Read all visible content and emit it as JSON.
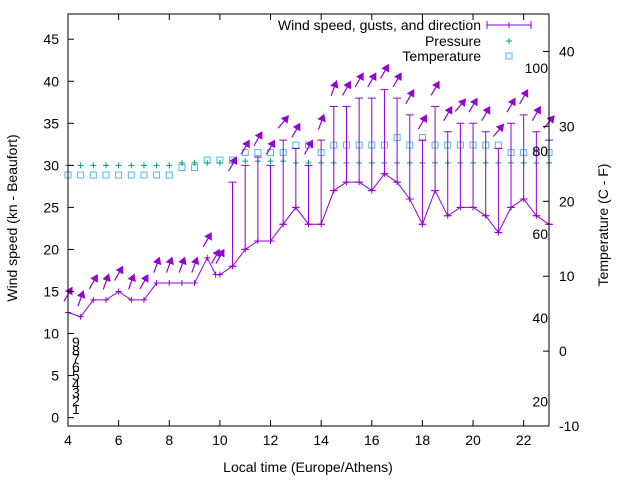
{
  "chart_data": {
    "type": "line",
    "xlabel": "Local time (Europe/Athens)",
    "ylabel": "Wind speed (kn - Beaufort)",
    "y2label": "Temperature (C - F)",
    "xlim": [
      4,
      23
    ],
    "ylim": [
      -1,
      48
    ],
    "y2lim": [
      -10,
      45
    ],
    "grid": false,
    "legend_position": "top-right",
    "xticks": [
      4,
      6,
      8,
      10,
      12,
      14,
      16,
      18,
      20,
      22
    ],
    "yticks": [
      0,
      5,
      10,
      15,
      20,
      25,
      30,
      35,
      40,
      45
    ],
    "y2ticks": [
      -10,
      0,
      10,
      20,
      30,
      40
    ],
    "beaufort_labels": [
      {
        "y": 1,
        "label": "1"
      },
      {
        "y": 2,
        "label": "2"
      },
      {
        "y": 3,
        "label": "3"
      },
      {
        "y": 4,
        "label": "4"
      },
      {
        "y": 5,
        "label": "5"
      },
      {
        "y": 6,
        "label": "6"
      },
      {
        "y": 7,
        "label": "7"
      },
      {
        "y": 8,
        "label": "8"
      },
      {
        "y": 9,
        "label": "9"
      }
    ],
    "fahrenheit_labels": [
      {
        "y2": -6.7,
        "label": "20"
      },
      {
        "y2": 4.4,
        "label": "40"
      },
      {
        "y2": 15.6,
        "label": "60"
      },
      {
        "y2": 26.7,
        "label": "80"
      },
      {
        "y2": 37.8,
        "label": "100"
      }
    ],
    "series": [
      {
        "name": "Wind speed, gusts, and direction",
        "color": "#9400d3",
        "x": [
          4.0,
          4.5,
          5.0,
          5.5,
          6.0,
          6.5,
          7.0,
          7.5,
          8.0,
          8.5,
          9.0,
          9.5,
          9.83,
          10.0,
          10.5,
          11.0,
          11.5,
          12.0,
          12.5,
          13.0,
          13.5,
          14.0,
          14.5,
          15.0,
          15.5,
          16.0,
          16.5,
          17.0,
          17.5,
          18.0,
          18.5,
          19.0,
          19.5,
          20.0,
          20.5,
          21.0,
          21.5,
          22.0,
          22.5,
          23.0
        ],
        "speed": [
          12.5,
          12.0,
          14.0,
          14.0,
          15.0,
          14.0,
          14.0,
          16.0,
          16.0,
          16.0,
          16.0,
          19.0,
          17.0,
          17.0,
          18.0,
          20.0,
          21.0,
          21.0,
          23.0,
          25.0,
          23.0,
          23.0,
          27.0,
          28.0,
          28.0,
          27.0,
          29.0,
          28.0,
          26.0,
          23.0,
          27.0,
          24.0,
          25.0,
          25.0,
          24.0,
          22.0,
          25.0,
          26.0,
          24.0,
          23.0
        ],
        "gust": [
          12.5,
          12.0,
          14.0,
          14.0,
          15.0,
          14.0,
          14.0,
          16.0,
          16.0,
          16.0,
          16.0,
          19.0,
          17.0,
          17.0,
          28.0,
          30.0,
          31.0,
          30.0,
          33.0,
          32.0,
          30.0,
          33.0,
          37.0,
          37.0,
          38.0,
          38.0,
          39.0,
          38.0,
          36.0,
          33.0,
          37.0,
          34.0,
          35.0,
          35.0,
          34.0,
          32.0,
          35.0,
          36.0,
          34.0,
          33.0
        ],
        "direction_deg": [
          330,
          340,
          330,
          340,
          330,
          340,
          330,
          340,
          340,
          340,
          340,
          330,
          330,
          330,
          330,
          330,
          330,
          330,
          320,
          330,
          330,
          340,
          340,
          330,
          330,
          330,
          330,
          330,
          330,
          330,
          330,
          330,
          320,
          330,
          330,
          320,
          330,
          330,
          330,
          320
        ]
      },
      {
        "name": "Pressure",
        "color": "#009e73",
        "x": [
          4.0,
          4.5,
          5.0,
          5.5,
          6.0,
          6.5,
          7.0,
          7.5,
          8.0,
          8.5,
          9.0,
          9.5,
          10.0,
          10.5,
          11.0,
          11.5,
          12.0,
          12.5,
          13.0,
          13.5,
          14.0,
          14.5,
          15.0,
          15.5,
          16.0,
          16.5,
          17.0,
          17.5,
          18.0,
          18.5,
          19.0,
          19.5,
          20.0,
          20.5,
          21.0,
          21.5,
          22.0,
          22.5,
          23.0
        ],
        "y": [
          30.0,
          30.0,
          30.0,
          30.0,
          30.0,
          30.0,
          30.0,
          30.0,
          30.0,
          30.3,
          30.3,
          30.3,
          30.3,
          30.3,
          30.5,
          30.5,
          30.5,
          30.5,
          30.3,
          30.3,
          30.3,
          30.3,
          30.3,
          30.3,
          30.3,
          30.3,
          30.3,
          30.3,
          30.3,
          30.3,
          30.3,
          30.3,
          30.3,
          30.3,
          30.3,
          30.3,
          30.3,
          30.3,
          30.3
        ]
      },
      {
        "name": "Temperature",
        "color": "#56b4e9",
        "axis": "y2",
        "x": [
          4.0,
          4.5,
          5.0,
          5.5,
          6.0,
          6.5,
          7.0,
          7.5,
          8.0,
          8.5,
          9.0,
          9.5,
          10.0,
          10.5,
          11.0,
          11.5,
          12.0,
          12.5,
          13.0,
          13.5,
          14.0,
          14.5,
          15.0,
          15.5,
          16.0,
          16.5,
          17.0,
          17.5,
          18.0,
          18.5,
          19.0,
          19.5,
          20.0,
          20.5,
          21.0,
          21.5,
          22.0,
          22.5,
          23.0
        ],
        "y": [
          23.5,
          23.5,
          23.5,
          23.5,
          23.5,
          23.5,
          23.5,
          23.5,
          23.5,
          24.5,
          24.5,
          25.5,
          25.5,
          25.5,
          26.5,
          26.5,
          26.5,
          26.5,
          27.5,
          27.5,
          26.5,
          27.5,
          27.5,
          27.5,
          27.5,
          27.5,
          28.5,
          27.5,
          28.5,
          27.5,
          27.5,
          27.5,
          27.5,
          27.5,
          27.5,
          26.5,
          26.5,
          26.5,
          26.5
        ]
      }
    ]
  }
}
